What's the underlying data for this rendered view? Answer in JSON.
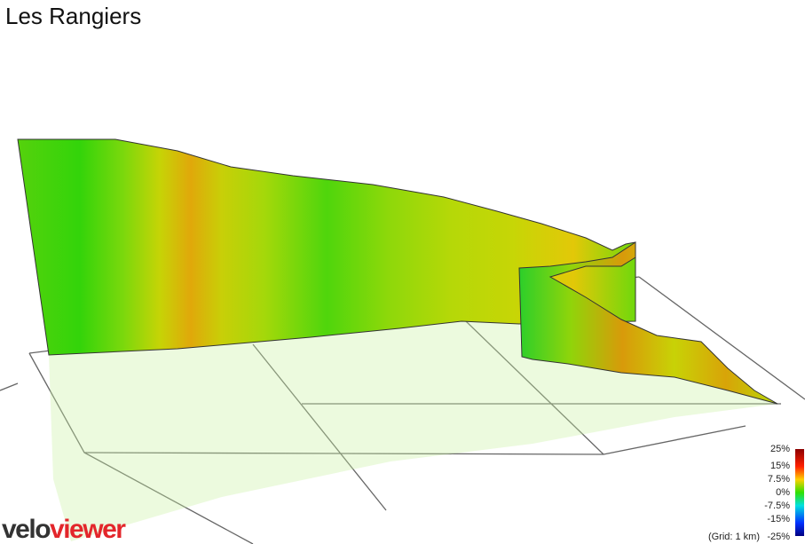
{
  "title": "Les Rangiers",
  "legend": {
    "labels": [
      "25%",
      "15%",
      "7.5%",
      "0%",
      "-7.5%",
      "-15%",
      "-25%"
    ],
    "note": "(Grid: 1 km)"
  },
  "logo": {
    "part1": "velo",
    "part2": "viewer"
  }
}
